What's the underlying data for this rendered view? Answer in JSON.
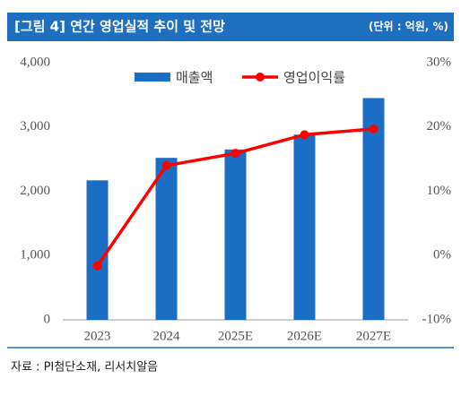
{
  "header": {
    "title": "[그림 4] 연간 영업실적 추이 및 전망",
    "unit": "(단위 : 억원, %)"
  },
  "chart_data": {
    "type": "bar_line",
    "categories": [
      "2023",
      "2024",
      "2025E",
      "2026E",
      "2027E"
    ],
    "series": [
      {
        "name": "매출액",
        "type": "bar",
        "color": "#1a6ec3",
        "values": [
          2170,
          2520,
          2650,
          2880,
          3450
        ]
      },
      {
        "name": "영업이익률",
        "type": "line",
        "axis": "y2",
        "color": "#ff0000",
        "values": [
          -1.6,
          14.0,
          15.9,
          18.8,
          19.7
        ]
      }
    ],
    "ylim": [
      0,
      4000
    ],
    "yticks": [
      0,
      {
        "value": 1000,
        "label": "1,000"
      },
      {
        "value": 2000,
        "label": "2,000"
      },
      {
        "value": 3000,
        "label": "3,000"
      },
      {
        "value": 4000,
        "label": "4,000"
      }
    ],
    "y2lim": [
      -10,
      30
    ],
    "y2ticks": [
      {
        "value": -10,
        "label": "-10%"
      },
      {
        "value": 0,
        "label": "0%"
      },
      {
        "value": 10,
        "label": "10%"
      },
      {
        "value": 20,
        "label": "20%"
      },
      {
        "value": 30,
        "label": "30%"
      }
    ],
    "legend": "top"
  },
  "source": "자료 : PI첨단소재, 리서치알음"
}
